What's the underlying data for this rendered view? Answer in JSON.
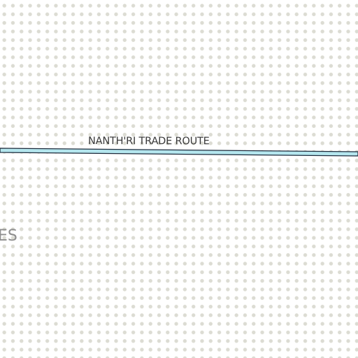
{
  "map": {
    "background_color": "#ffffff",
    "dot_color": "#dcdcd3",
    "labels": {
      "trade_route": "NANTH'RI TRADE ROUTE",
      "region_partial": "ES"
    },
    "route": {
      "name": "NANTH'RI TRADE ROUTE",
      "fill_color": "#b4e6ee",
      "outline_color": "#1e2b3c"
    }
  }
}
